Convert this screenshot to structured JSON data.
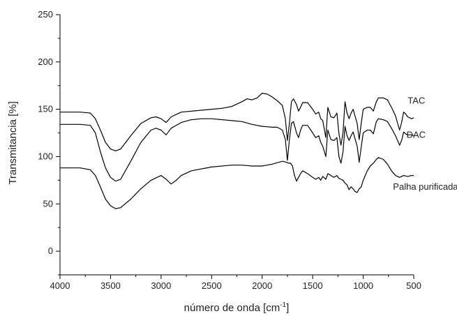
{
  "chart_data": {
    "type": "line",
    "title": "",
    "xlabel": "número de onda [cm",
    "xlabel_sup": "-1",
    "xlabel_close": "]",
    "ylabel": "Transmitancia [%]",
    "xlim": [
      4000,
      500
    ],
    "ylim": [
      -25,
      250
    ],
    "x_ticks": [
      4000,
      3500,
      3000,
      2500,
      2000,
      1500,
      1000,
      500
    ],
    "y_ticks": [
      0,
      50,
      100,
      150,
      200,
      250
    ],
    "grid": false,
    "legend": "none",
    "line_color": "#000000",
    "series": [
      {
        "name": "TAC",
        "label_at": [
          560,
          156
        ],
        "points": [
          [
            4000,
            147
          ],
          [
            3800,
            147
          ],
          [
            3700,
            146
          ],
          [
            3650,
            140
          ],
          [
            3600,
            128
          ],
          [
            3550,
            115
          ],
          [
            3500,
            108
          ],
          [
            3450,
            106
          ],
          [
            3400,
            108
          ],
          [
            3300,
            122
          ],
          [
            3200,
            135
          ],
          [
            3100,
            141
          ],
          [
            3050,
            142
          ],
          [
            3000,
            140
          ],
          [
            2950,
            136
          ],
          [
            2900,
            142
          ],
          [
            2800,
            147
          ],
          [
            2600,
            149
          ],
          [
            2500,
            150
          ],
          [
            2400,
            151
          ],
          [
            2300,
            153
          ],
          [
            2200,
            158
          ],
          [
            2150,
            161
          ],
          [
            2100,
            160
          ],
          [
            2050,
            162
          ],
          [
            2000,
            167
          ],
          [
            1950,
            166
          ],
          [
            1900,
            163
          ],
          [
            1850,
            159
          ],
          [
            1800,
            154
          ],
          [
            1770,
            140
          ],
          [
            1750,
            117
          ],
          [
            1730,
            135
          ],
          [
            1710,
            158
          ],
          [
            1690,
            161
          ],
          [
            1660,
            155
          ],
          [
            1640,
            148
          ],
          [
            1620,
            152
          ],
          [
            1600,
            157
          ],
          [
            1550,
            157
          ],
          [
            1500,
            150
          ],
          [
            1470,
            145
          ],
          [
            1440,
            147
          ],
          [
            1420,
            140
          ],
          [
            1400,
            138
          ],
          [
            1370,
            120
          ],
          [
            1350,
            152
          ],
          [
            1320,
            142
          ],
          [
            1290,
            141
          ],
          [
            1260,
            146
          ],
          [
            1240,
            124
          ],
          [
            1220,
            112
          ],
          [
            1200,
            125
          ],
          [
            1180,
            158
          ],
          [
            1160,
            146
          ],
          [
            1140,
            140
          ],
          [
            1120,
            146
          ],
          [
            1100,
            150
          ],
          [
            1060,
            135
          ],
          [
            1040,
            118
          ],
          [
            1020,
            135
          ],
          [
            1000,
            150
          ],
          [
            960,
            152
          ],
          [
            930,
            152
          ],
          [
            900,
            148
          ],
          [
            870,
            158
          ],
          [
            850,
            162
          ],
          [
            800,
            162
          ],
          [
            760,
            160
          ],
          [
            720,
            152
          ],
          [
            680,
            143
          ],
          [
            640,
            128
          ],
          [
            620,
            136
          ],
          [
            600,
            147
          ],
          [
            580,
            145
          ],
          [
            560,
            142
          ],
          [
            520,
            140
          ],
          [
            500,
            141
          ]
        ]
      },
      {
        "name": "DAC",
        "label_at": [
          572,
          120
        ],
        "points": [
          [
            4000,
            134
          ],
          [
            3800,
            134
          ],
          [
            3700,
            133
          ],
          [
            3650,
            125
          ],
          [
            3600,
            105
          ],
          [
            3550,
            88
          ],
          [
            3500,
            78
          ],
          [
            3450,
            74
          ],
          [
            3400,
            76
          ],
          [
            3300,
            95
          ],
          [
            3200,
            115
          ],
          [
            3100,
            128
          ],
          [
            3050,
            130
          ],
          [
            3000,
            128
          ],
          [
            2950,
            123
          ],
          [
            2900,
            130
          ],
          [
            2800,
            136
          ],
          [
            2700,
            139
          ],
          [
            2600,
            140
          ],
          [
            2500,
            140
          ],
          [
            2300,
            138
          ],
          [
            2200,
            137
          ],
          [
            2100,
            134
          ],
          [
            2000,
            132
          ],
          [
            1900,
            131
          ],
          [
            1850,
            131
          ],
          [
            1800,
            128
          ],
          [
            1770,
            118
          ],
          [
            1750,
            96
          ],
          [
            1730,
            118
          ],
          [
            1710,
            135
          ],
          [
            1690,
            137
          ],
          [
            1660,
            125
          ],
          [
            1640,
            120
          ],
          [
            1620,
            128
          ],
          [
            1600,
            133
          ],
          [
            1550,
            133
          ],
          [
            1500,
            125
          ],
          [
            1470,
            120
          ],
          [
            1440,
            122
          ],
          [
            1420,
            115
          ],
          [
            1400,
            111
          ],
          [
            1370,
            100
          ],
          [
            1350,
            128
          ],
          [
            1320,
            118
          ],
          [
            1290,
            117
          ],
          [
            1260,
            120
          ],
          [
            1240,
            100
          ],
          [
            1220,
            93
          ],
          [
            1200,
            105
          ],
          [
            1180,
            132
          ],
          [
            1160,
            122
          ],
          [
            1140,
            117
          ],
          [
            1120,
            122
          ],
          [
            1100,
            126
          ],
          [
            1060,
            111
          ],
          [
            1040,
            94
          ],
          [
            1020,
            110
          ],
          [
            1000,
            125
          ],
          [
            960,
            128
          ],
          [
            930,
            128
          ],
          [
            900,
            124
          ],
          [
            870,
            137
          ],
          [
            850,
            140
          ],
          [
            800,
            139
          ],
          [
            760,
            137
          ],
          [
            720,
            130
          ],
          [
            680,
            122
          ],
          [
            640,
            112
          ],
          [
            620,
            117
          ],
          [
            600,
            126
          ],
          [
            580,
            124
          ],
          [
            560,
            123
          ],
          [
            520,
            123
          ],
          [
            500,
            122
          ]
        ]
      },
      {
        "name": "Palha purificada",
        "label_at": [
          705,
          65
        ],
        "points": [
          [
            4000,
            88
          ],
          [
            3800,
            88
          ],
          [
            3700,
            86
          ],
          [
            3650,
            80
          ],
          [
            3600,
            68
          ],
          [
            3550,
            55
          ],
          [
            3500,
            48
          ],
          [
            3450,
            45
          ],
          [
            3400,
            46
          ],
          [
            3300,
            55
          ],
          [
            3200,
            66
          ],
          [
            3100,
            75
          ],
          [
            3000,
            80
          ],
          [
            2950,
            76
          ],
          [
            2900,
            71
          ],
          [
            2850,
            75
          ],
          [
            2800,
            80
          ],
          [
            2700,
            85
          ],
          [
            2500,
            89
          ],
          [
            2300,
            91
          ],
          [
            2200,
            91
          ],
          [
            2100,
            90
          ],
          [
            2000,
            90
          ],
          [
            1900,
            92
          ],
          [
            1800,
            95
          ],
          [
            1760,
            94
          ],
          [
            1740,
            93
          ],
          [
            1720,
            93
          ],
          [
            1700,
            90
          ],
          [
            1680,
            80
          ],
          [
            1660,
            74
          ],
          [
            1640,
            78
          ],
          [
            1620,
            82
          ],
          [
            1600,
            85
          ],
          [
            1550,
            82
          ],
          [
            1500,
            78
          ],
          [
            1470,
            76
          ],
          [
            1440,
            78
          ],
          [
            1420,
            75
          ],
          [
            1400,
            79
          ],
          [
            1370,
            76
          ],
          [
            1350,
            82
          ],
          [
            1320,
            80
          ],
          [
            1290,
            78
          ],
          [
            1260,
            80
          ],
          [
            1240,
            77
          ],
          [
            1220,
            76
          ],
          [
            1200,
            75
          ],
          [
            1180,
            72
          ],
          [
            1160,
            70
          ],
          [
            1140,
            65
          ],
          [
            1120,
            68
          ],
          [
            1100,
            66
          ],
          [
            1080,
            63
          ],
          [
            1060,
            62
          ],
          [
            1040,
            66
          ],
          [
            1020,
            68
          ],
          [
            1000,
            75
          ],
          [
            960,
            85
          ],
          [
            930,
            90
          ],
          [
            900,
            93
          ],
          [
            870,
            97
          ],
          [
            850,
            99
          ],
          [
            800,
            97
          ],
          [
            760,
            92
          ],
          [
            720,
            85
          ],
          [
            680,
            80
          ],
          [
            640,
            78
          ],
          [
            600,
            80
          ],
          [
            560,
            79
          ],
          [
            520,
            80
          ],
          [
            500,
            80
          ]
        ]
      }
    ]
  }
}
